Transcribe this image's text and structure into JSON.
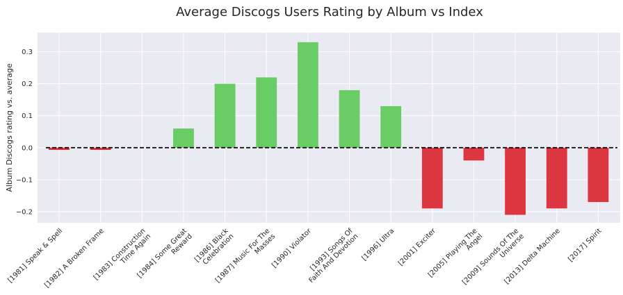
{
  "chart_data": {
    "type": "bar",
    "title": "Average Discogs Users Rating by Album vs Index",
    "xlabel": "",
    "ylabel": "Album Discogs rating vs. average",
    "categories": [
      "[1981] Speak & Spell",
      "[1982] A Broken Frame",
      "[1983] Construction\nTime Again",
      "[1984] Some Great\nReward",
      "[1986] Black\nCelebration",
      "[1987] Music For The\nMasses",
      "[1990] Violator",
      "[1993] Songs Of\nFaith And Devotion",
      "[1996] Ultra",
      "[2001] Exciter",
      "[2005] Playing The\nAngel",
      "[2009] Sounds Of The\nUniverse",
      "[2013] Delta Machine",
      "[2017] Spirit"
    ],
    "values": [
      -0.007,
      -0.007,
      0.0,
      0.06,
      0.2,
      0.22,
      0.33,
      0.18,
      0.13,
      -0.19,
      -0.04,
      -0.21,
      -0.19,
      -0.17
    ],
    "ylim": [
      -0.235,
      0.36
    ],
    "yticks": [
      -0.2,
      -0.1,
      0.0,
      0.1,
      0.2,
      0.3
    ],
    "ytick_labels": [
      "−0.2",
      "−0.1",
      "0.0",
      "0.1",
      "0.2",
      "0.3"
    ],
    "reference_line": 0,
    "grid": true,
    "colors": {
      "positive": "#6acc64",
      "negative": "#dc3640",
      "background": "#eaeaf2",
      "grid": "#ffffff",
      "reference": "#000000"
    }
  }
}
